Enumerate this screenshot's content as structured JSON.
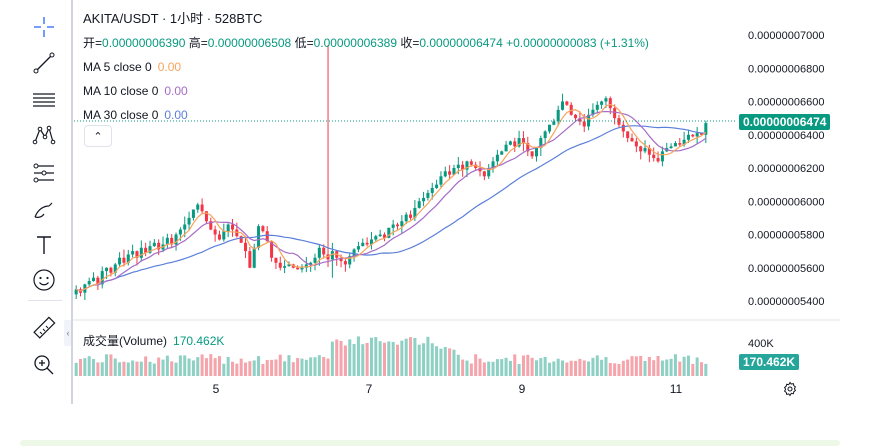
{
  "toolbar": {
    "tools": [
      {
        "name": "crosshair-icon"
      },
      {
        "name": "trend-line-icon"
      },
      {
        "name": "horizontal-lines-icon"
      },
      {
        "name": "pattern-icon"
      },
      {
        "name": "fib-retracement-icon"
      },
      {
        "name": "brush-icon"
      },
      {
        "name": "text-icon"
      },
      {
        "name": "emoji-icon"
      },
      {
        "name": "ruler-icon"
      },
      {
        "name": "zoom-in-icon"
      }
    ]
  },
  "header": {
    "title": "AKITA/USDT · 1小时 · 528BTC"
  },
  "ohlc": {
    "open_label": "开=",
    "open": "0.00000006390",
    "high_label": "高=",
    "high": "0.00000006508",
    "low_label": "低=",
    "low": "0.00000006389",
    "close_label": "收=",
    "close": "0.00000006474",
    "change": "+0.00000000083 (+1.31%)"
  },
  "ma": [
    {
      "label": "MA 5 close 0",
      "value": "0.00",
      "color": "#f7a35c"
    },
    {
      "label": "MA 10 close 0",
      "value": "0.00",
      "color": "#a66cc7"
    },
    {
      "label": "MA 30 close 0",
      "value": "0.00",
      "color": "#5b7fd9"
    }
  ],
  "legend_toggle": "⌃",
  "volume": {
    "label": "成交量(Volume)",
    "value": "170.462K"
  },
  "price_axis": {
    "ticks": [
      "0.00000007000",
      "0.00000006800",
      "0.00000006600",
      "0.00000006400",
      "0.00000006200",
      "0.00000006000",
      "0.00000005800",
      "0.00000005600",
      "0.00000005400"
    ],
    "current_price": "0.00000006474"
  },
  "volume_axis": {
    "ticks": [
      "400K"
    ],
    "current": "170.462K"
  },
  "time_axis": {
    "ticks": [
      "5",
      "7",
      "9",
      "11"
    ]
  },
  "colors": {
    "up": "#089981",
    "down": "#f23645",
    "vol_up": "#8ed1c4",
    "vol_down": "#f5a4ab",
    "ma5": "#f7a35c",
    "ma10": "#a66cc7",
    "ma30": "#5b7fd9"
  },
  "chart_data": {
    "type": "candlestick",
    "price_range": [
      5.32e-08,
      7.07e-08
    ],
    "closes": [
      5.47,
      5.45,
      5.5,
      5.52,
      5.54,
      5.5,
      5.58,
      5.6,
      5.57,
      5.62,
      5.66,
      5.63,
      5.68,
      5.7,
      5.66,
      5.72,
      5.69,
      5.73,
      5.75,
      5.71,
      5.74,
      5.78,
      5.74,
      5.8,
      5.83,
      5.86,
      5.9,
      5.95,
      5.98,
      5.94,
      5.88,
      5.83,
      5.8,
      5.77,
      5.82,
      5.86,
      5.83,
      5.79,
      5.75,
      5.7,
      5.6,
      5.72,
      5.85,
      5.82,
      5.76,
      5.66,
      5.63,
      5.6,
      5.61,
      5.62,
      5.6,
      5.59,
      5.6,
      5.62,
      5.63,
      5.66,
      5.72,
      5.68,
      5.65,
      5.7,
      5.66,
      5.64,
      5.62,
      5.67,
      5.71,
      5.73,
      5.75,
      5.74,
      5.77,
      5.79,
      5.8,
      5.78,
      5.84,
      5.86,
      5.85,
      5.88,
      5.92,
      5.9,
      5.96,
      6.0,
      6.02,
      6.05,
      6.08,
      6.1,
      6.15,
      6.18,
      6.16,
      6.2,
      6.22,
      6.19,
      6.24,
      6.22,
      6.2,
      6.18,
      6.15,
      6.2,
      6.24,
      6.28,
      6.3,
      6.34,
      6.36,
      6.33,
      6.38,
      6.35,
      6.3,
      6.27,
      6.32,
      6.38,
      6.42,
      6.46,
      6.48,
      6.55,
      6.6,
      6.58,
      6.52,
      6.5,
      6.48,
      6.45,
      6.52,
      6.55,
      6.58,
      6.6,
      6.62,
      6.56,
      6.5,
      6.46,
      6.42,
      6.38,
      6.36,
      6.33,
      6.3,
      6.32,
      6.28,
      6.26,
      6.24,
      6.3,
      6.32,
      6.33,
      6.35,
      6.34,
      6.37,
      6.4,
      6.39,
      6.41,
      6.4,
      6.47
    ],
    "last_close": 6.474e-08
  }
}
